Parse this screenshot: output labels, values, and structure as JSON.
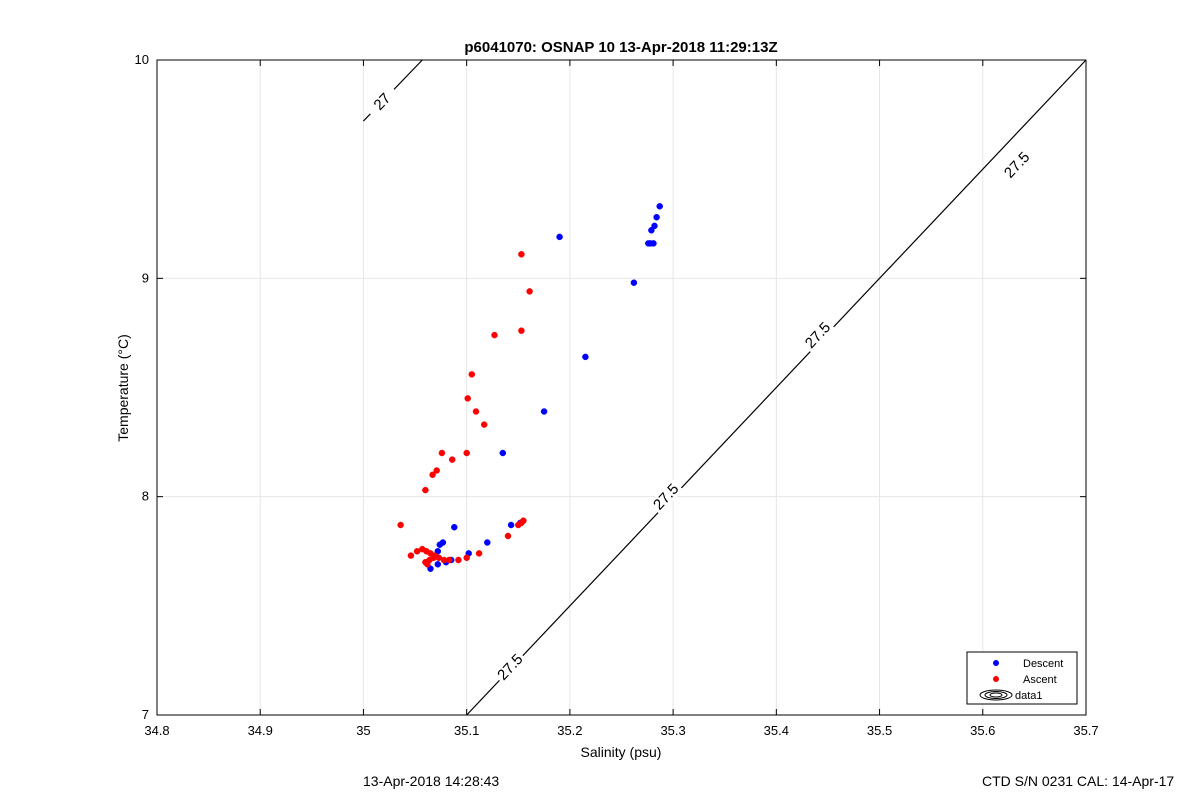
{
  "chart_data": {
    "type": "scatter",
    "title": "p6041070: OSNAP 10 13-Apr-2018 11:29:13Z",
    "xlabel": "Salinity (psu)",
    "ylabel": "Temperature (°C)",
    "xlim": [
      34.8,
      35.7
    ],
    "ylim": [
      7,
      10
    ],
    "xticks": [
      "34.8",
      "34.9",
      "35",
      "35.1",
      "35.2",
      "35.3",
      "35.4",
      "35.5",
      "35.6",
      "35.7"
    ],
    "yticks": [
      "7",
      "8",
      "9",
      "10"
    ],
    "grid": true,
    "legend_placement": "bottom-right",
    "series": [
      {
        "name": "Descent",
        "color": "#0000ff",
        "points": [
          [
            35.287,
            9.33
          ],
          [
            35.284,
            9.28
          ],
          [
            35.282,
            9.24
          ],
          [
            35.279,
            9.22
          ],
          [
            35.281,
            9.16
          ],
          [
            35.276,
            9.16
          ],
          [
            35.278,
            9.16
          ],
          [
            35.19,
            9.19
          ],
          [
            35.262,
            8.98
          ],
          [
            35.215,
            8.64
          ],
          [
            35.175,
            8.39
          ],
          [
            35.135,
            8.2
          ],
          [
            35.143,
            7.87
          ],
          [
            35.088,
            7.86
          ],
          [
            35.077,
            7.79
          ],
          [
            35.074,
            7.78
          ],
          [
            35.12,
            7.79
          ],
          [
            35.102,
            7.74
          ],
          [
            35.072,
            7.75
          ],
          [
            35.065,
            7.67
          ],
          [
            35.072,
            7.69
          ],
          [
            35.08,
            7.7
          ],
          [
            35.085,
            7.71
          ],
          [
            35.152,
            7.88
          ]
        ]
      },
      {
        "name": "Ascent",
        "color": "#ff0000",
        "points": [
          [
            35.153,
            9.11
          ],
          [
            35.161,
            8.94
          ],
          [
            35.153,
            8.76
          ],
          [
            35.127,
            8.74
          ],
          [
            35.105,
            8.56
          ],
          [
            35.101,
            8.45
          ],
          [
            35.109,
            8.39
          ],
          [
            35.117,
            8.33
          ],
          [
            35.076,
            8.2
          ],
          [
            35.1,
            8.2
          ],
          [
            35.086,
            8.17
          ],
          [
            35.071,
            8.12
          ],
          [
            35.067,
            8.1
          ],
          [
            35.06,
            8.03
          ],
          [
            35.036,
            7.87
          ],
          [
            35.153,
            7.88
          ],
          [
            35.155,
            7.89
          ],
          [
            35.15,
            7.87
          ],
          [
            35.14,
            7.82
          ],
          [
            35.112,
            7.74
          ],
          [
            35.1,
            7.72
          ],
          [
            35.092,
            7.71
          ],
          [
            35.083,
            7.71
          ],
          [
            35.078,
            7.71
          ],
          [
            35.073,
            7.72
          ],
          [
            35.069,
            7.73
          ],
          [
            35.065,
            7.74
          ],
          [
            35.061,
            7.75
          ],
          [
            35.057,
            7.76
          ],
          [
            35.052,
            7.75
          ],
          [
            35.046,
            7.73
          ],
          [
            35.06,
            7.7
          ],
          [
            35.064,
            7.71
          ],
          [
            35.068,
            7.72
          ],
          [
            35.062,
            7.69
          ]
        ]
      }
    ],
    "contours": [
      {
        "name": "data1",
        "level_labels": [
          {
            "text": "27",
            "x": 35.018,
            "y": 9.81
          },
          {
            "text": "27.5",
            "x": 35.633,
            "y": 9.52
          },
          {
            "text": "27.5",
            "x": 35.44,
            "y": 8.74
          },
          {
            "text": "27.5",
            "x": 35.293,
            "y": 8.0
          },
          {
            "text": "27.5",
            "x": 35.142,
            "y": 7.22
          }
        ]
      }
    ],
    "legend_entries": [
      "Descent",
      "Ascent",
      "data1"
    ]
  },
  "footer": {
    "left": "13-Apr-2018 14:28:43",
    "right": "CTD S/N 0231  CAL: 14-Apr-17"
  }
}
